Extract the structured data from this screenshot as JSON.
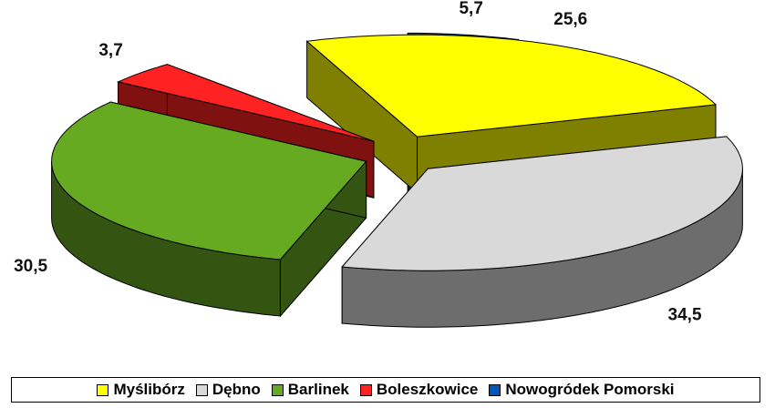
{
  "chart_data": {
    "type": "pie3d",
    "categories": [
      "Myślibórz",
      "Dębno",
      "Barlinek",
      "Boleszkowice",
      "Nowogródek Pomorski"
    ],
    "values": [
      25.6,
      34.5,
      30.5,
      3.7,
      5.7
    ],
    "value_labels": [
      "25,6",
      "34,5",
      "30,5",
      "3,7",
      "5,7"
    ],
    "colors": [
      "#ffff00",
      "#d9d9d9",
      "#66aa22",
      "#ff2222",
      "#0055bb"
    ],
    "legend": "bottom"
  }
}
